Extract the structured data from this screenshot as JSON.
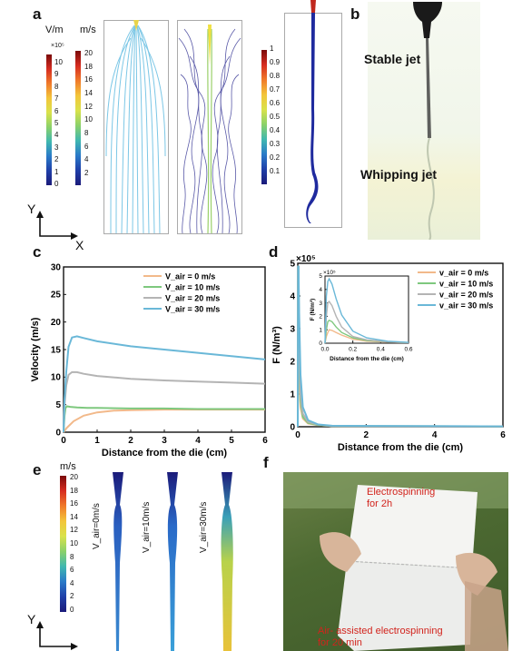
{
  "panel_labels": {
    "a": "a",
    "b": "b",
    "c": "c",
    "d": "d",
    "e": "e",
    "f": "f"
  },
  "panel_a": {
    "cbar1_title": "V/m",
    "cbar1_exp": "×10⁵",
    "cbar1_ticks": [
      "10",
      "9",
      "8",
      "7",
      "6",
      "5",
      "4",
      "3",
      "2",
      "1",
      "0"
    ],
    "cbar2_title": "m/s",
    "cbar2_ticks": [
      "20",
      "18",
      "16",
      "14",
      "12",
      "10",
      "8",
      "6",
      "4",
      "2"
    ],
    "cbar3_ticks": [
      "1",
      "0.9",
      "0.8",
      "0.7",
      "0.6",
      "0.5",
      "0.4",
      "0.3",
      "0.2",
      "0.1"
    ],
    "axis_y": "Y",
    "axis_x": "X"
  },
  "panel_b": {
    "stable": "Stable jet",
    "whipping": "Whipping jet"
  },
  "panel_e": {
    "cbar_title": "m/s",
    "cbar_ticks": [
      "20",
      "18",
      "16",
      "14",
      "12",
      "10",
      "8",
      "6",
      "4",
      "2",
      "0"
    ],
    "labels": [
      "V_air=0m/s",
      "V_air=10m/s",
      "V_air=30m/s"
    ],
    "axis_y": "Y"
  },
  "panel_f": {
    "top": "Electrospinning\nfor 2h",
    "bottom": "Air- assisted electrospinning\nfor 20 min"
  },
  "colors": {
    "s0": "#f2b98a",
    "s10": "#7ec87e",
    "s20": "#b4b4b4",
    "s30": "#6ab8d8"
  },
  "chart_data": [
    {
      "type": "line",
      "panel": "c",
      "xlabel": "Distance from the die (cm)",
      "ylabel": "Velocity (m/s)",
      "xlim": [
        0,
        6
      ],
      "ylim": [
        0,
        30
      ],
      "xticks": [
        "0",
        "1",
        "2",
        "3",
        "4",
        "5",
        "6"
      ],
      "yticks": [
        "0",
        "5",
        "10",
        "15",
        "20",
        "25",
        "30"
      ],
      "legend_position": "top-right",
      "series": [
        {
          "name": "V_air = 0 m/s",
          "x": [
            0,
            0.1,
            0.3,
            0.6,
            1,
            1.5,
            2,
            3,
            4,
            5,
            6
          ],
          "y": [
            0,
            0.8,
            2,
            3,
            3.6,
            3.9,
            4.0,
            4.1,
            4.1,
            4.1,
            4.1
          ]
        },
        {
          "name": "V_air = 10 m/s",
          "x": [
            0,
            0.03,
            0.06,
            0.1,
            0.2,
            0.4,
            0.7,
            1,
            2,
            3,
            4,
            5,
            6
          ],
          "y": [
            0,
            3,
            4.4,
            4.7,
            4.6,
            4.5,
            4.4,
            4.4,
            4.3,
            4.3,
            4.2,
            4.2,
            4.2
          ]
        },
        {
          "name": "V_air = 20 m/s",
          "x": [
            0,
            0.03,
            0.08,
            0.15,
            0.25,
            0.4,
            0.6,
            1,
            2,
            3,
            4,
            5,
            6
          ],
          "y": [
            0,
            5,
            8.5,
            10.4,
            10.9,
            10.9,
            10.6,
            10.2,
            9.7,
            9.4,
            9.2,
            9.0,
            8.8
          ]
        },
        {
          "name": "V_air = 30 m/s",
          "x": [
            0,
            0.03,
            0.08,
            0.15,
            0.25,
            0.4,
            0.6,
            1,
            2,
            3,
            4,
            5,
            6
          ],
          "y": [
            0,
            6,
            11,
            15.5,
            17.2,
            17.4,
            17.1,
            16.5,
            15.6,
            15.0,
            14.4,
            13.8,
            13.2
          ]
        }
      ]
    },
    {
      "type": "line",
      "panel": "d",
      "xlabel": "Distance from the die (cm)",
      "ylabel": "F (N/m³)",
      "y_exponent": "×10⁵",
      "xlim": [
        0,
        6
      ],
      "ylim": [
        0,
        5
      ],
      "xticks": [
        "0",
        "2",
        "4",
        "6"
      ],
      "yticks": [
        "0",
        "1",
        "2",
        "3",
        "4",
        "5"
      ],
      "legend_position": "top-right",
      "series": [
        {
          "name": "v_air = 0 m/s",
          "x": [
            0,
            0.01,
            0.02,
            0.04,
            0.08,
            0.15,
            0.3,
            0.6,
            1,
            6
          ],
          "y": [
            0,
            4.9,
            4.9,
            1.5,
            0.6,
            0.25,
            0.1,
            0.05,
            0.02,
            0.01
          ]
        },
        {
          "name": "v_air = 10 m/s",
          "x": [
            0,
            0.01,
            0.02,
            0.04,
            0.08,
            0.15,
            0.3,
            0.6,
            1,
            6
          ],
          "y": [
            0,
            4.9,
            4.9,
            2.0,
            0.8,
            0.3,
            0.12,
            0.05,
            0.02,
            0.01
          ]
        },
        {
          "name": "v_air = 20 m/s",
          "x": [
            0,
            0.01,
            0.02,
            0.04,
            0.08,
            0.15,
            0.3,
            0.6,
            1,
            6
          ],
          "y": [
            0,
            4.9,
            4.9,
            2.6,
            1.0,
            0.4,
            0.15,
            0.06,
            0.02,
            0.01
          ]
        },
        {
          "name": "v_air = 30 m/s",
          "x": [
            0,
            0.01,
            0.02,
            0.04,
            0.08,
            0.15,
            0.3,
            0.6,
            1,
            6
          ],
          "y": [
            0,
            4.9,
            4.9,
            3.5,
            1.6,
            0.6,
            0.2,
            0.07,
            0.03,
            0.01
          ]
        }
      ],
      "inset": {
        "xlabel": "Distance from the die (cm)",
        "ylabel": "F (N/m³)",
        "y_exponent": "×10⁵",
        "xlim": [
          0,
          0.6
        ],
        "ylim": [
          0,
          5
        ],
        "xticks": [
          "0.0",
          "0.2",
          "0.4",
          "0.6"
        ],
        "yticks": [
          "0",
          "1",
          "2",
          "3",
          "4",
          "5"
        ],
        "series": [
          {
            "name": "v_air = 0 m/s",
            "x": [
              0,
              0.01,
              0.02,
              0.03,
              0.05,
              0.08,
              0.12,
              0.2,
              0.3,
              0.45,
              0.6
            ],
            "y": [
              0,
              0.5,
              0.8,
              1.0,
              0.95,
              0.8,
              0.6,
              0.3,
              0.15,
              0.08,
              0.05
            ]
          },
          {
            "name": "v_air = 10 m/s",
            "x": [
              0,
              0.01,
              0.02,
              0.03,
              0.05,
              0.08,
              0.12,
              0.2,
              0.3,
              0.45,
              0.6
            ],
            "y": [
              0,
              1.0,
              1.6,
              1.7,
              1.6,
              1.2,
              0.8,
              0.4,
              0.2,
              0.1,
              0.05
            ]
          },
          {
            "name": "v_air = 20 m/s",
            "x": [
              0,
              0.01,
              0.02,
              0.03,
              0.05,
              0.08,
              0.12,
              0.2,
              0.3,
              0.45,
              0.6
            ],
            "y": [
              0,
              2.0,
              3.0,
              3.1,
              2.8,
              2.0,
              1.2,
              0.5,
              0.25,
              0.1,
              0.05
            ]
          },
          {
            "name": "v_air = 30 m/s",
            "x": [
              0,
              0.01,
              0.02,
              0.03,
              0.05,
              0.08,
              0.12,
              0.2,
              0.3,
              0.45,
              0.6
            ],
            "y": [
              0,
              3.5,
              4.6,
              4.8,
              4.4,
              3.3,
              2.1,
              0.9,
              0.4,
              0.15,
              0.06
            ]
          }
        ]
      }
    }
  ]
}
